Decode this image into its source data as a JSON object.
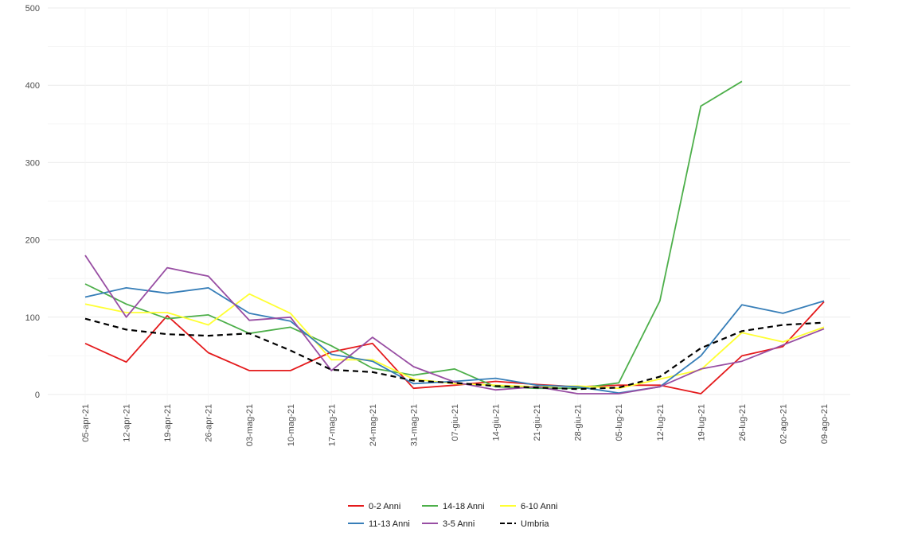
{
  "chart_data": {
    "type": "line",
    "title": "",
    "xlabel": "",
    "ylabel": "",
    "ylim": [
      0,
      500
    ],
    "y_ticks": [
      0,
      100,
      200,
      300,
      400,
      500
    ],
    "grid": true,
    "legend_position": "bottom",
    "categories": [
      "05-apr-21",
      "12-apr-21",
      "19-apr-21",
      "26-apr-21",
      "03-mag-21",
      "10-mag-21",
      "17-mag-21",
      "24-mag-21",
      "31-mag-21",
      "07-giu-21",
      "14-giu-21",
      "21-giu-21",
      "28-giu-21",
      "05-lug-21",
      "12-lug-21",
      "19-lug-21",
      "26-lug-21",
      "02-ago-21",
      "09-ago-21"
    ],
    "series": [
      {
        "name": "0-2 Anni",
        "color": "#e41a1c",
        "dash": false,
        "values": [
          66,
          42,
          102,
          54,
          31,
          31,
          55,
          66,
          8,
          12,
          17,
          13,
          10,
          12,
          12,
          1,
          50,
          62,
          120
        ]
      },
      {
        "name": "14-18 Anni",
        "color": "#4daf4a",
        "dash": false,
        "values": [
          143,
          117,
          98,
          103,
          79,
          87,
          63,
          34,
          25,
          33,
          10,
          8,
          8,
          15,
          121,
          373,
          405,
          null,
          null
        ]
      },
      {
        "name": "6-10 Anni",
        "color": "#ffff33",
        "dash": false,
        "values": [
          117,
          106,
          106,
          90,
          130,
          105,
          45,
          45,
          20,
          14,
          12,
          10,
          11,
          8,
          20,
          32,
          80,
          68,
          87
        ]
      },
      {
        "name": "11-13 Anni",
        "color": "#377eb8",
        "dash": false,
        "values": [
          126,
          138,
          131,
          138,
          105,
          95,
          52,
          43,
          14,
          17,
          21,
          12,
          10,
          2,
          10,
          50,
          116,
          105,
          121
        ]
      },
      {
        "name": "3-5 Anni",
        "color": "#984ea3",
        "dash": false,
        "values": [
          180,
          100,
          164,
          153,
          96,
          100,
          31,
          74,
          36,
          16,
          6,
          10,
          1,
          1,
          10,
          33,
          43,
          64,
          85
        ]
      },
      {
        "name": "Umbria",
        "color": "#000000",
        "dash": true,
        "values": [
          98,
          84,
          78,
          76,
          79,
          57,
          32,
          29,
          18,
          15,
          11,
          9,
          7,
          9,
          23,
          60,
          82,
          90,
          93
        ]
      }
    ],
    "legend_rows": [
      [
        "0-2 Anni",
        "14-18 Anni",
        "6-10 Anni"
      ],
      [
        "11-13 Anni",
        "3-5 Anni",
        "Umbria"
      ]
    ]
  }
}
